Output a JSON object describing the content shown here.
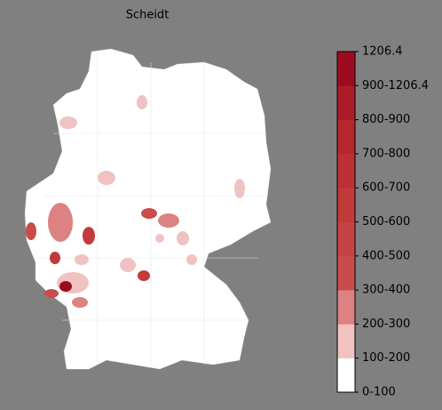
{
  "title": "Scheidt",
  "colorbar": {
    "labels": [
      "0-100",
      "100-200",
      "200-300",
      "300-400",
      "400-500",
      "500-600",
      "600-700",
      "700-800",
      "800-900",
      "900-1206.4",
      "1206.4"
    ],
    "colors": [
      "#ffffff",
      "#f0c2c2",
      "#dc8282",
      "#c94b4b",
      "#c64343",
      "#c23a3a",
      "#bc3034",
      "#b5262d",
      "#ac1b27",
      "#9e0b20"
    ]
  }
}
